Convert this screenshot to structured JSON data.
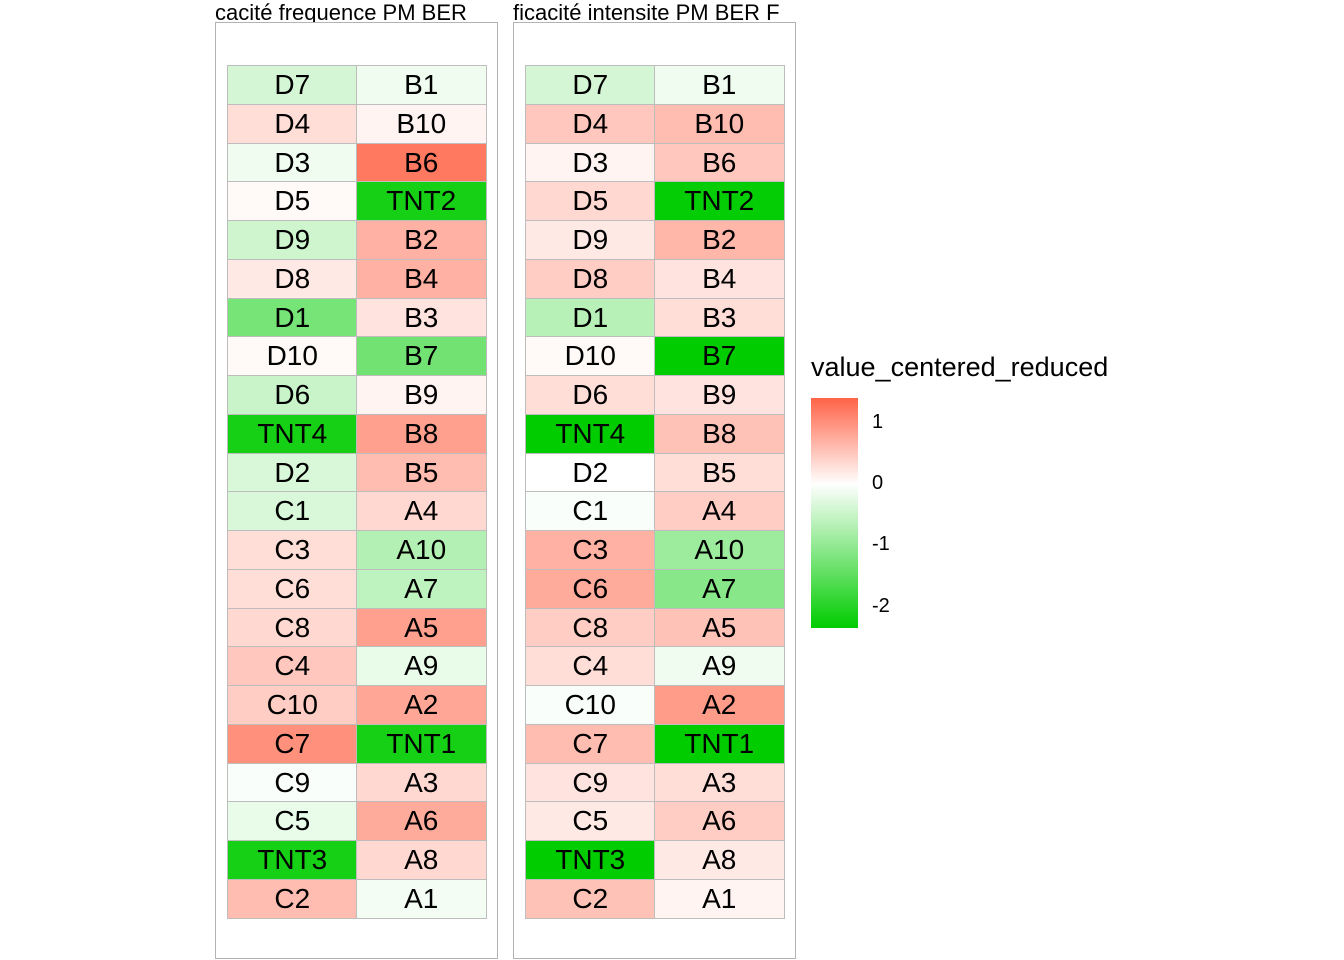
{
  "chart_data": {
    "type": "heatmap",
    "legend": {
      "title": "value_centered_reduced",
      "ticks": [
        1,
        0,
        -1,
        -2
      ],
      "tick_labels": [
        "1",
        "0",
        "-1",
        "-2"
      ],
      "range": [
        -2.35,
        1.4
      ],
      "colors": {
        "low": "#00CC00",
        "mid": "#FFFFFF",
        "high": "#FF6347"
      },
      "position": "right"
    },
    "panels": [
      {
        "title": "cacité frequence PM  BER",
        "columns": [
          {
            "labels": [
              "D7",
              "D4",
              "D3",
              "D5",
              "D9",
              "D8",
              "D1",
              "D10",
              "D6",
              "TNT4",
              "D2",
              "C1",
              "C3",
              "C6",
              "C8",
              "C4",
              "C10",
              "C7",
              "C9",
              "C5",
              "TNT3",
              "C2"
            ],
            "values": [
              -0.4,
              0.3,
              -0.15,
              0.05,
              -0.45,
              0.2,
              -1.25,
              0.05,
              -0.5,
              -2.15,
              -0.35,
              -0.35,
              0.3,
              0.3,
              0.35,
              0.5,
              0.45,
              1.0,
              -0.05,
              -0.2,
              -2.15,
              0.6
            ]
          },
          {
            "labels": [
              "B1",
              "B10",
              "B6",
              "TNT2",
              "B2",
              "B4",
              "B3",
              "B7",
              "B9",
              "B8",
              "B5",
              "A4",
              "A10",
              "A7",
              "A5",
              "A9",
              "A2",
              "TNT1",
              "A3",
              "A6",
              "A8",
              "A1"
            ],
            "values": [
              -0.15,
              0.1,
              1.2,
              -2.15,
              0.7,
              0.7,
              0.25,
              -1.3,
              0.1,
              0.85,
              0.6,
              0.35,
              -0.7,
              -0.6,
              0.85,
              -0.2,
              0.8,
              -2.15,
              0.35,
              0.75,
              0.35,
              -0.1
            ]
          }
        ]
      },
      {
        "title": "ficacité intensite PM  BER  F",
        "columns": [
          {
            "labels": [
              "D7",
              "D4",
              "D3",
              "D5",
              "D9",
              "D8",
              "D1",
              "D10",
              "D6",
              "TNT4",
              "D2",
              "C1",
              "C3",
              "C6",
              "C8",
              "C4",
              "C10",
              "C7",
              "C9",
              "C5",
              "TNT3",
              "C2"
            ],
            "values": [
              -0.4,
              0.5,
              0.1,
              0.35,
              0.2,
              0.45,
              -0.65,
              0.05,
              0.3,
              -2.35,
              0.0,
              -0.05,
              0.7,
              0.75,
              0.45,
              0.3,
              -0.05,
              0.6,
              0.25,
              0.2,
              -2.35,
              0.55
            ]
          },
          {
            "labels": [
              "B1",
              "B10",
              "B6",
              "TNT2",
              "B2",
              "B4",
              "B3",
              "B7",
              "B9",
              "B8",
              "B5",
              "A4",
              "A10",
              "A7",
              "A5",
              "A9",
              "A2",
              "TNT1",
              "A3",
              "A6",
              "A8",
              "A1"
            ],
            "values": [
              -0.15,
              0.6,
              0.5,
              -2.3,
              0.65,
              0.25,
              0.3,
              -2.35,
              0.25,
              0.55,
              0.3,
              0.45,
              -0.9,
              -1.1,
              0.55,
              -0.15,
              0.9,
              -2.35,
              0.3,
              0.45,
              0.2,
              0.1
            ]
          }
        ]
      }
    ]
  }
}
